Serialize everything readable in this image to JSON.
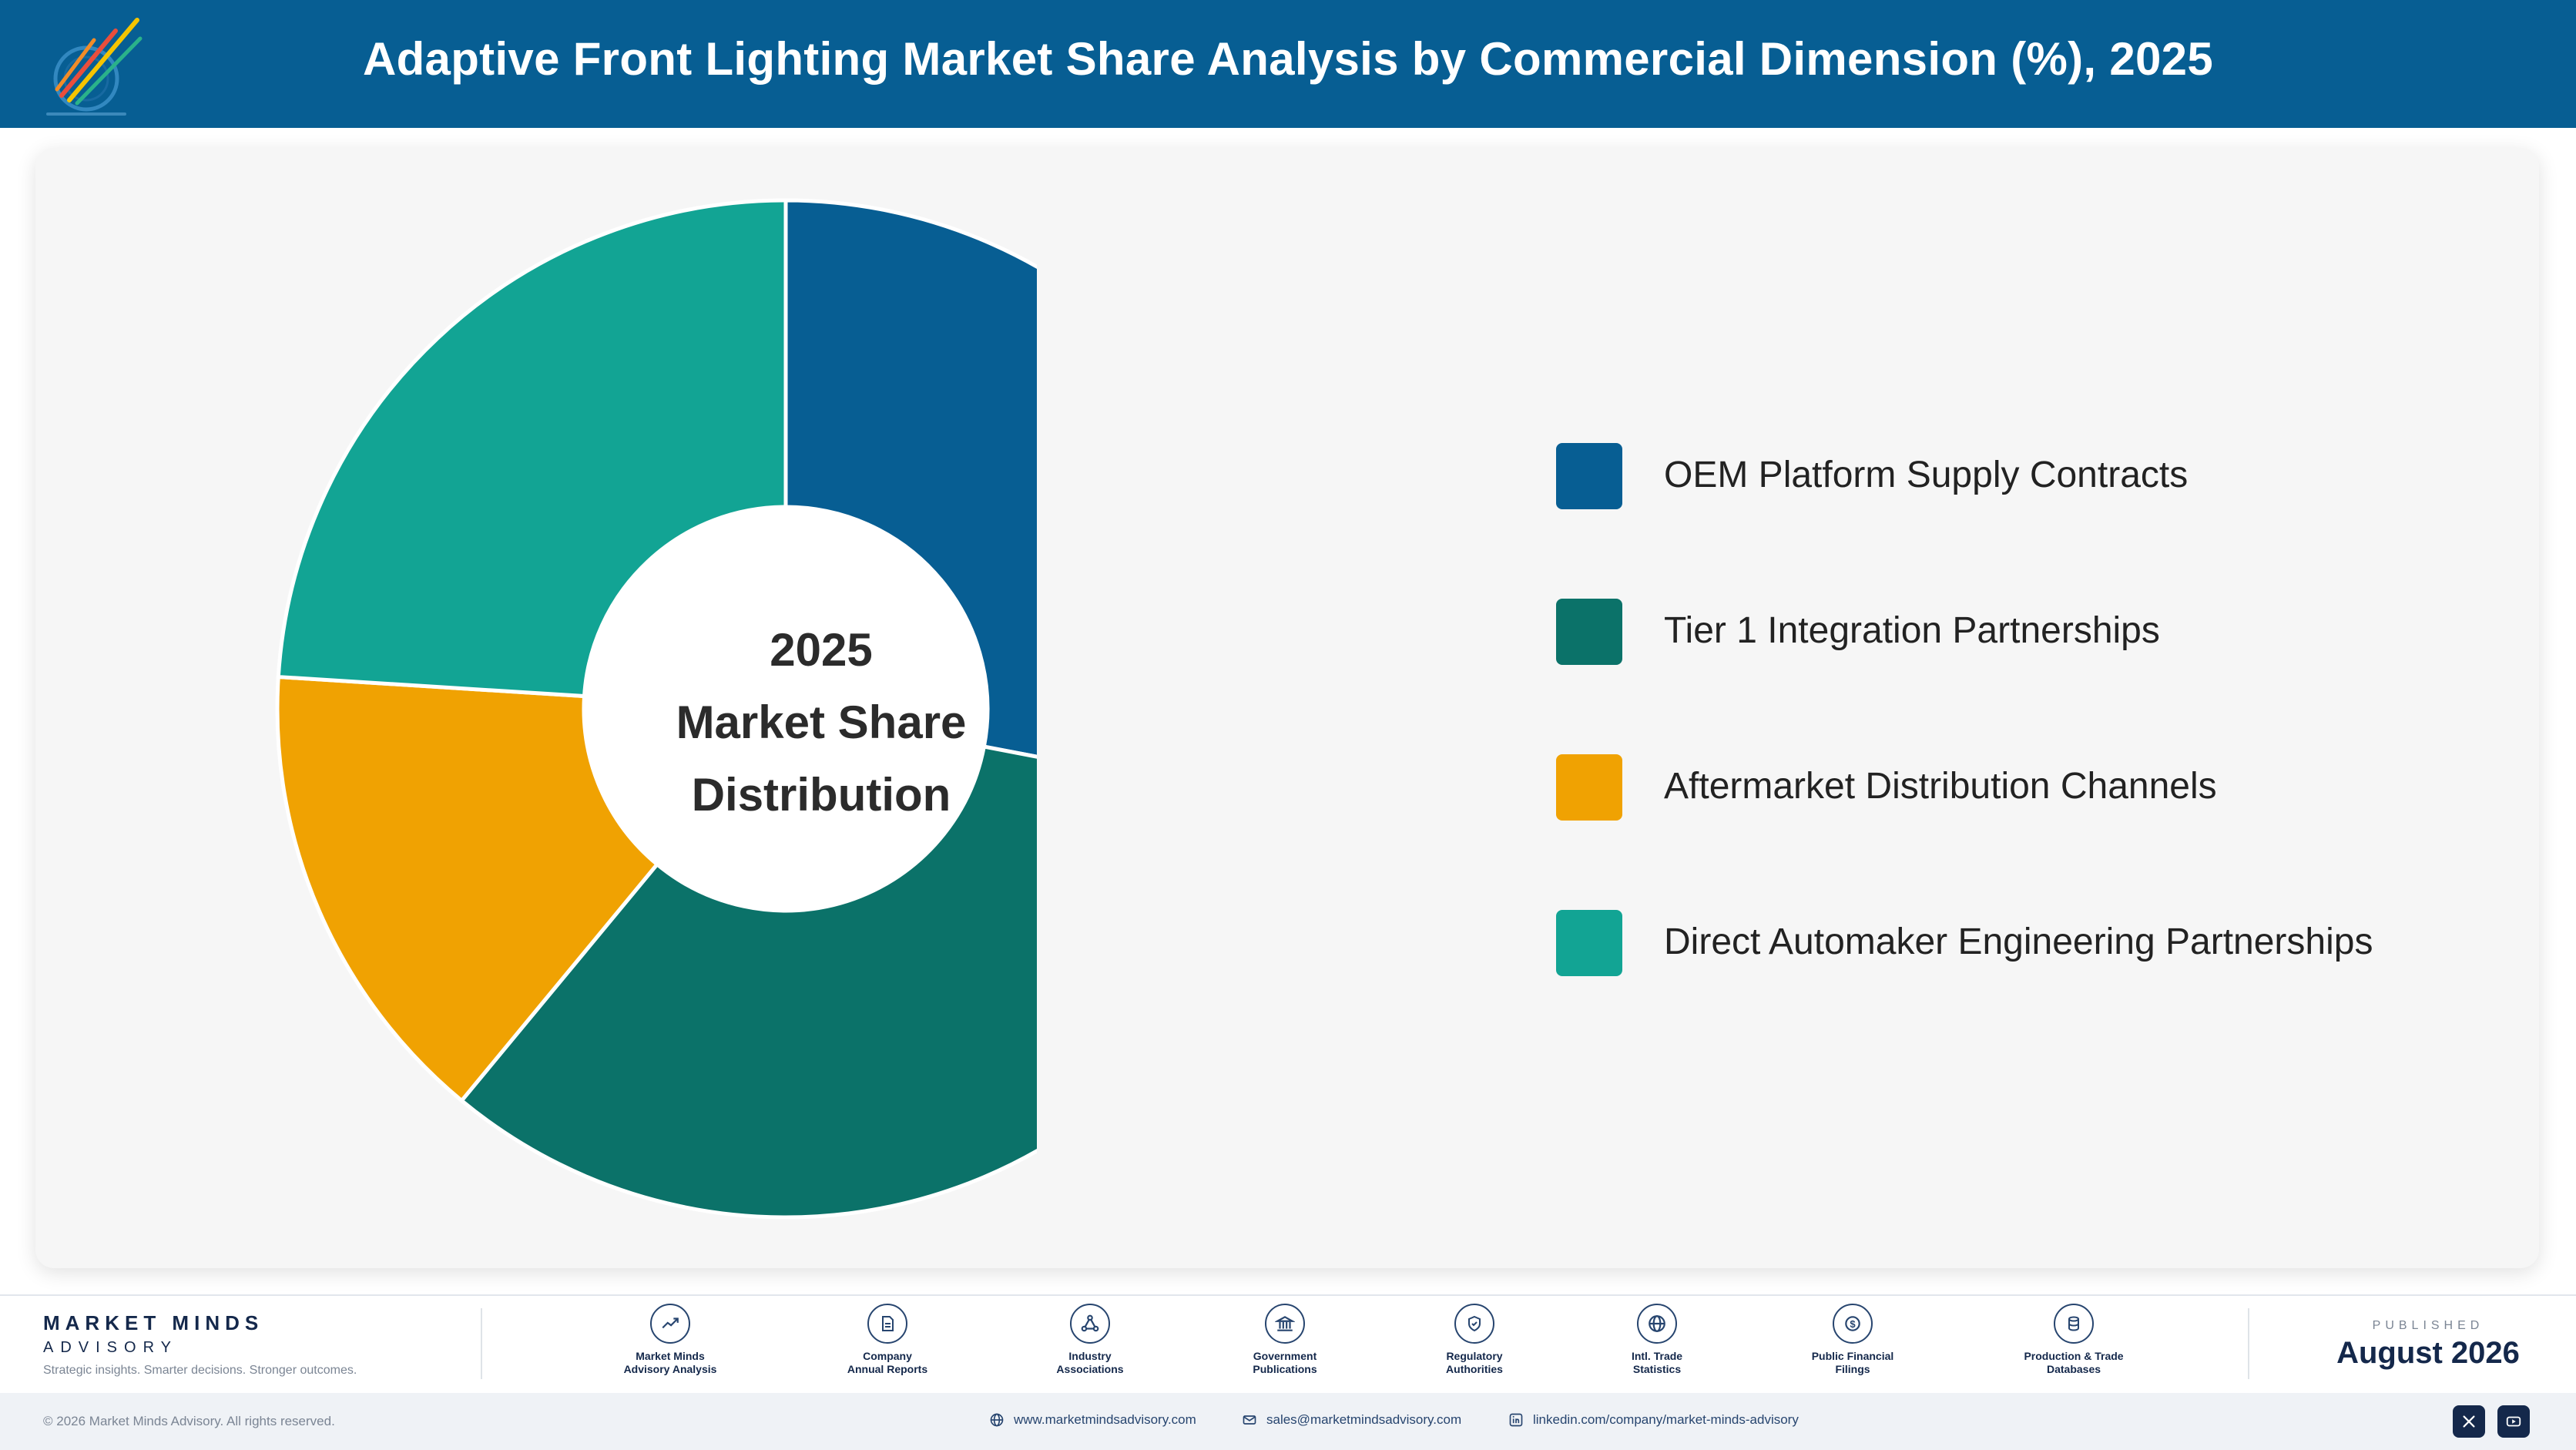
{
  "header": {
    "title": "Adaptive Front Lighting Market Share Analysis by Commercial Dimension (%), 2025"
  },
  "chart_data": {
    "type": "pie",
    "style": "donut",
    "title": "Adaptive Front Lighting Market Share Analysis by Commercial Dimension (%), 2025",
    "center_label": [
      "2025",
      "Market Share",
      "Distribution"
    ],
    "legend_position": "right",
    "categories": [
      "OEM Platform Supply Contracts",
      "Tier 1 Integration Partnerships",
      "Aftermarket Distribution Channels",
      "Direct Automaker Engineering Partnerships"
    ],
    "values": [
      28,
      33,
      15,
      24
    ],
    "colors": [
      "#075e93",
      "#0b7269",
      "#f0a202",
      "#12a494"
    ]
  },
  "footer": {
    "brand_name": "MARKET MINDS",
    "brand_sub": "ADVISORY",
    "tagline": "Strategic insights. Smarter decisions. Stronger outcomes.",
    "sources": [
      {
        "line1": "Market Minds",
        "line2": "Advisory Analysis",
        "icon": "trend-chart-icon"
      },
      {
        "line1": "Company",
        "line2": "Annual Reports",
        "icon": "document-icon"
      },
      {
        "line1": "Industry",
        "line2": "Associations",
        "icon": "network-icon"
      },
      {
        "line1": "Government",
        "line2": "Publications",
        "icon": "government-building-icon"
      },
      {
        "line1": "Regulatory",
        "line2": "Authorities",
        "icon": "shield-check-icon"
      },
      {
        "line1": "Intl. Trade",
        "line2": "Statistics",
        "icon": "globe-icon"
      },
      {
        "line1": "Public Financial",
        "line2": "Filings",
        "icon": "dollar-coin-icon"
      },
      {
        "line1": "Production & Trade",
        "line2": "Databases",
        "icon": "database-icon"
      }
    ],
    "published_caption": "PUBLISHED",
    "published_date": "August 2026",
    "copyright": "© 2026 Market Minds Advisory. All rights reserved.",
    "website": "www.marketmindsadvisory.com",
    "email": "sales@marketmindsadvisory.com",
    "linkedin": "linkedin.com/company/market-minds-advisory"
  },
  "colors": {
    "header_bg": "#075e93",
    "navy": "#14284b",
    "card_bg": "#f6f6f6"
  }
}
